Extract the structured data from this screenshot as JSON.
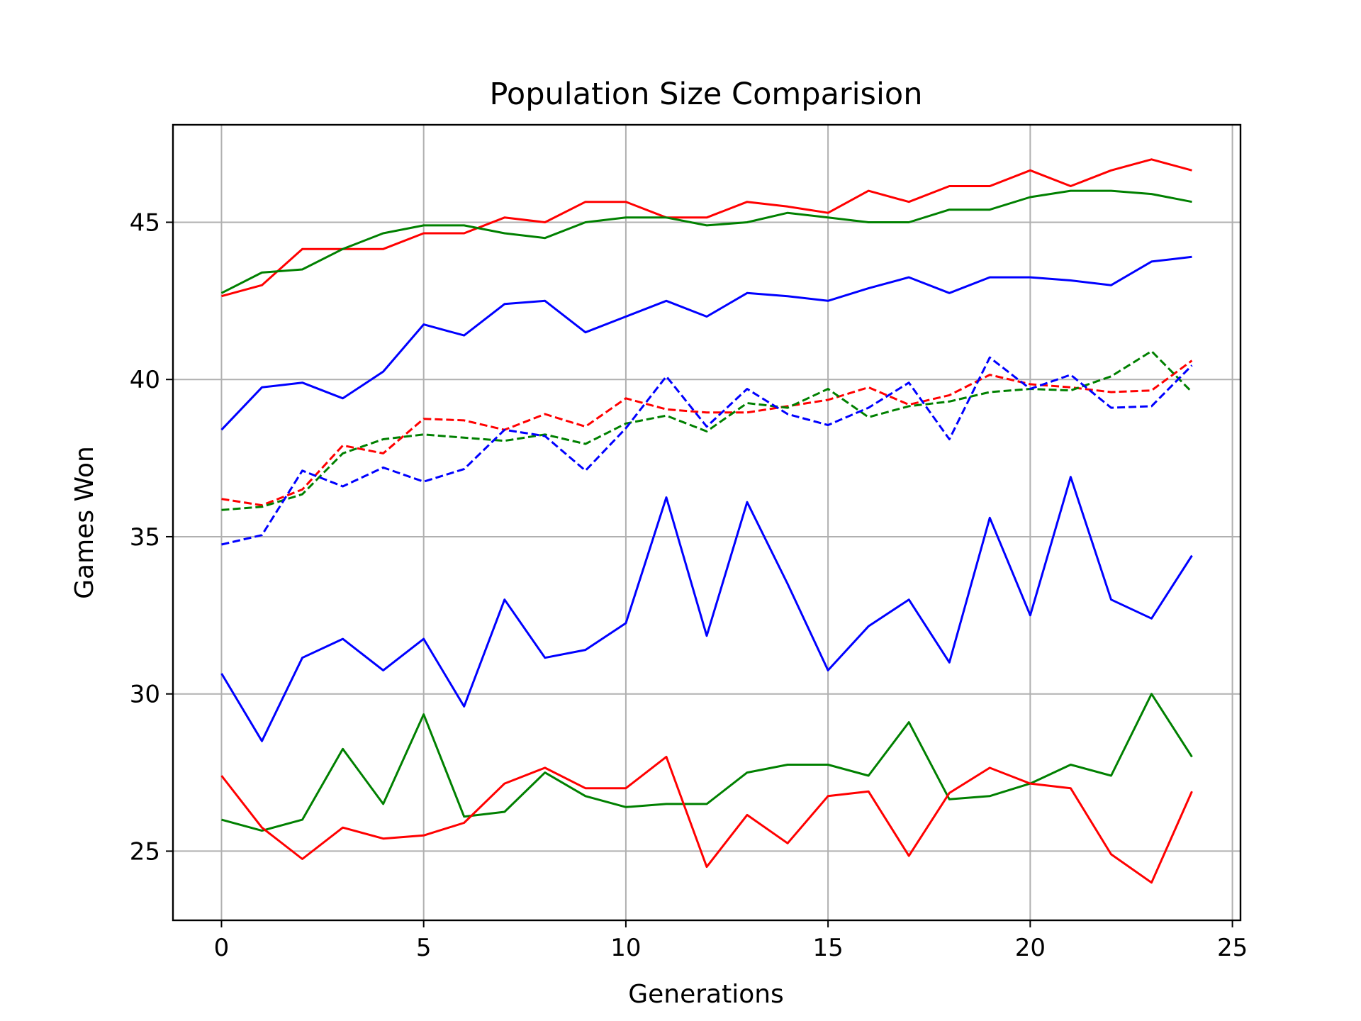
{
  "chart_data": {
    "type": "line",
    "title": "Population Size Comparision",
    "xlabel": "Generations",
    "ylabel": "Games Won",
    "xlim": [
      -1.2,
      25.2
    ],
    "ylim": [
      22.8,
      48.1
    ],
    "xticks": [
      0,
      5,
      10,
      15,
      20,
      25
    ],
    "yticks": [
      25,
      30,
      35,
      40,
      45
    ],
    "grid": true,
    "x": [
      0,
      1,
      2,
      3,
      4,
      5,
      6,
      7,
      8,
      9,
      10,
      11,
      12,
      13,
      14,
      15,
      16,
      17,
      18,
      19,
      20,
      21,
      22,
      23,
      24
    ],
    "series": [
      {
        "color": "#ff0000",
        "style": "solid",
        "values": [
          42.65,
          43.0,
          44.15,
          44.15,
          44.15,
          44.65,
          44.65,
          45.15,
          45.0,
          45.65,
          45.65,
          45.15,
          45.15,
          45.65,
          45.5,
          45.3,
          46.0,
          45.65,
          46.15,
          46.15,
          46.65,
          46.15,
          46.65,
          47.0,
          46.65
        ]
      },
      {
        "color": "#008000",
        "style": "solid",
        "values": [
          42.75,
          43.4,
          43.5,
          44.15,
          44.65,
          44.9,
          44.9,
          44.65,
          44.5,
          45.0,
          45.15,
          45.15,
          44.9,
          45.0,
          45.3,
          45.15,
          45.0,
          45.0,
          45.4,
          45.4,
          45.8,
          46.0,
          46.0,
          45.9,
          45.65
        ]
      },
      {
        "color": "#0000ff",
        "style": "solid",
        "values": [
          38.4,
          39.75,
          39.9,
          39.4,
          40.25,
          41.75,
          41.4,
          42.4,
          42.5,
          41.5,
          42.0,
          42.5,
          42.0,
          42.75,
          42.65,
          42.5,
          42.9,
          43.25,
          42.75,
          43.25,
          43.25,
          43.15,
          43.0,
          43.75,
          43.9
        ]
      },
      {
        "color": "#ff0000",
        "style": "dashed",
        "values": [
          36.2,
          36.0,
          36.5,
          37.9,
          37.65,
          38.75,
          38.7,
          38.4,
          38.9,
          38.5,
          39.4,
          39.05,
          38.95,
          38.95,
          39.15,
          39.35,
          39.75,
          39.2,
          39.5,
          40.15,
          39.85,
          39.75,
          39.6,
          39.65,
          40.6
        ]
      },
      {
        "color": "#008000",
        "style": "dashed",
        "values": [
          35.85,
          35.95,
          36.35,
          37.65,
          38.1,
          38.25,
          38.15,
          38.05,
          38.25,
          37.95,
          38.6,
          38.85,
          38.35,
          39.25,
          39.1,
          39.7,
          38.8,
          39.15,
          39.3,
          39.6,
          39.7,
          39.65,
          40.1,
          40.9,
          39.6
        ]
      },
      {
        "color": "#0000ff",
        "style": "dashed",
        "values": [
          34.75,
          35.05,
          37.1,
          36.6,
          37.2,
          36.75,
          37.15,
          38.4,
          38.2,
          37.1,
          38.45,
          40.1,
          38.5,
          39.7,
          38.9,
          38.55,
          39.1,
          39.9,
          38.1,
          40.7,
          39.7,
          40.15,
          39.1,
          39.15,
          40.45
        ]
      },
      {
        "color": "#0000ff",
        "style": "solid",
        "values": [
          30.65,
          28.5,
          31.15,
          31.75,
          30.75,
          31.75,
          29.6,
          33.0,
          31.15,
          31.4,
          32.25,
          36.25,
          31.85,
          36.1,
          33.5,
          30.75,
          32.15,
          33.0,
          31.0,
          35.6,
          32.5,
          36.9,
          33.0,
          32.4,
          34.4
        ]
      },
      {
        "color": "#008000",
        "style": "solid",
        "values": [
          26.0,
          25.65,
          26.0,
          28.25,
          26.5,
          29.35,
          26.1,
          26.25,
          27.5,
          26.75,
          26.4,
          26.5,
          26.5,
          27.5,
          27.75,
          27.75,
          27.4,
          29.1,
          26.65,
          26.75,
          27.15,
          27.75,
          27.4,
          30.0,
          28.0
        ]
      },
      {
        "color": "#ff0000",
        "style": "solid",
        "values": [
          27.4,
          25.75,
          24.75,
          25.75,
          25.4,
          25.5,
          25.9,
          27.15,
          27.65,
          27.0,
          27.0,
          28.0,
          24.5,
          26.15,
          25.25,
          26.75,
          26.9,
          24.85,
          26.85,
          27.65,
          27.15,
          27.0,
          24.9,
          24.0,
          26.9
        ]
      }
    ]
  }
}
